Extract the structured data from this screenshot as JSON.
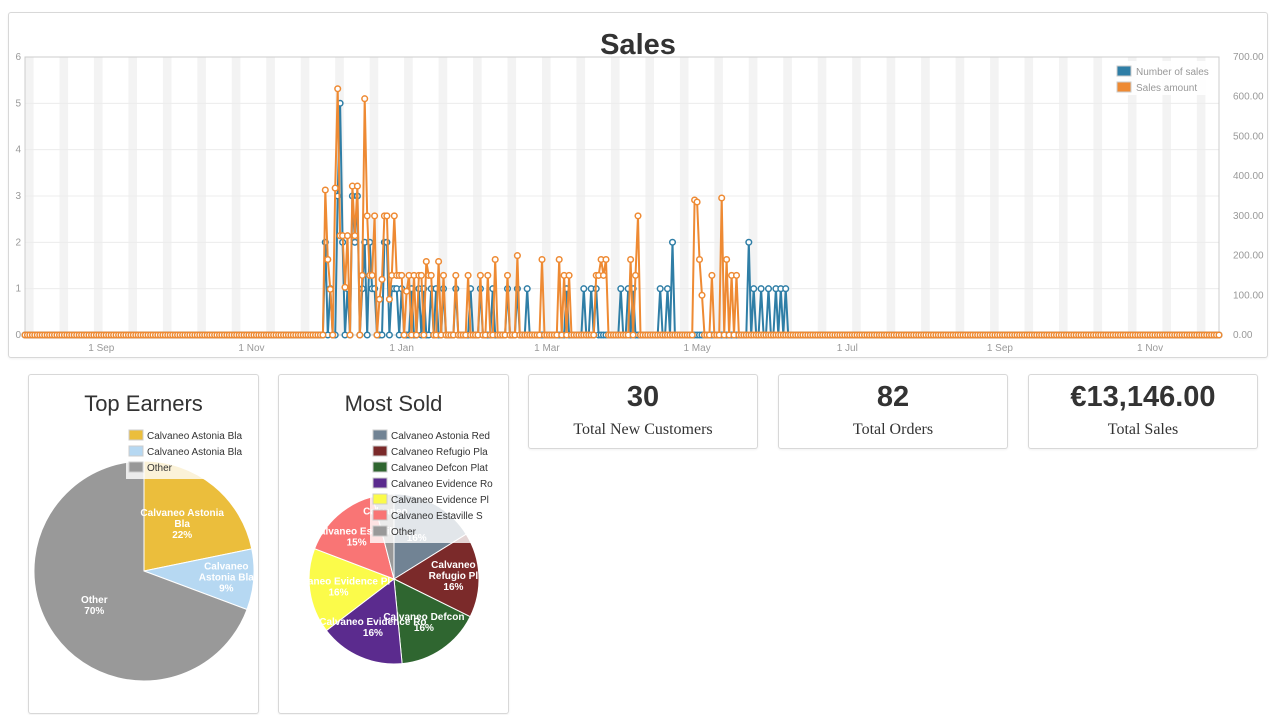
{
  "sales": {
    "title": "Sales",
    "x_tick_labels": [
      "1 Sep",
      "1 Nov",
      "1 Jan",
      "1 Mar",
      "1 May",
      "1 Jul",
      "1 Sep",
      "1 Nov"
    ],
    "y_left_ticks": [
      "0",
      "1",
      "2",
      "3",
      "4",
      "5",
      "6"
    ],
    "y_right_ticks": [
      "0.00",
      "100.00",
      "200.00",
      "300.00",
      "400.00",
      "500.00",
      "600.00",
      "700.00"
    ],
    "legend": [
      {
        "label": "Number of sales",
        "color": "#2f7ea6"
      },
      {
        "label": "Sales amount",
        "color": "#ee8a33"
      }
    ]
  },
  "chart_data": [
    {
      "type": "line",
      "title": "Sales",
      "x_unit": "days since start (~1 Aug)",
      "x_range": [
        0,
        485
      ],
      "ylim_left": [
        0,
        6
      ],
      "ylim_right": [
        0,
        700
      ],
      "series": [
        {
          "name": "Number of sales",
          "axis": "left",
          "color": "#2f7ea6",
          "points": [
            [
              122,
              2
            ],
            [
              124,
              1
            ],
            [
              127,
              3
            ],
            [
              128,
              5
            ],
            [
              129,
              2
            ],
            [
              131,
              1
            ],
            [
              133,
              3
            ],
            [
              134,
              2
            ],
            [
              135,
              3
            ],
            [
              137,
              1
            ],
            [
              138,
              2
            ],
            [
              140,
              2
            ],
            [
              141,
              1
            ],
            [
              142,
              1
            ],
            [
              146,
              2
            ],
            [
              147,
              2
            ],
            [
              149,
              1
            ],
            [
              150,
              1
            ],
            [
              151,
              1
            ],
            [
              153,
              1
            ],
            [
              157,
              1
            ],
            [
              160,
              1
            ],
            [
              162,
              1
            ],
            [
              165,
              1
            ],
            [
              167,
              1
            ],
            [
              170,
              1
            ],
            [
              175,
              1
            ],
            [
              181,
              1
            ],
            [
              185,
              1
            ],
            [
              190,
              1
            ],
            [
              196,
              1
            ],
            [
              200,
              1
            ],
            [
              204,
              1
            ],
            [
              220,
              1
            ],
            [
              227,
              1
            ],
            [
              230,
              1
            ],
            [
              232,
              1
            ],
            [
              242,
              1
            ],
            [
              245,
              1
            ],
            [
              247,
              1
            ],
            [
              258,
              1
            ],
            [
              261,
              1
            ],
            [
              263,
              2
            ],
            [
              294,
              2
            ],
            [
              296,
              1
            ],
            [
              299,
              1
            ],
            [
              302,
              1
            ],
            [
              305,
              1
            ],
            [
              307,
              1
            ],
            [
              309,
              1
            ]
          ]
        },
        {
          "name": "Sales amount",
          "axis": "right",
          "color": "#ee8a33",
          "points": [
            [
              122,
              365
            ],
            [
              123,
              190
            ],
            [
              124,
              115
            ],
            [
              126,
              370
            ],
            [
              127,
              620
            ],
            [
              128,
              250
            ],
            [
              129,
              250
            ],
            [
              130,
              120
            ],
            [
              131,
              250
            ],
            [
              133,
              375
            ],
            [
              134,
              250
            ],
            [
              135,
              375
            ],
            [
              137,
              150
            ],
            [
              138,
              595
            ],
            [
              139,
              300
            ],
            [
              140,
              150
            ],
            [
              141,
              150
            ],
            [
              142,
              300
            ],
            [
              144,
              90
            ],
            [
              145,
              140
            ],
            [
              146,
              300
            ],
            [
              147,
              300
            ],
            [
              148,
              90
            ],
            [
              149,
              150
            ],
            [
              150,
              300
            ],
            [
              151,
              150
            ],
            [
              152,
              150
            ],
            [
              153,
              150
            ],
            [
              155,
              110
            ],
            [
              156,
              150
            ],
            [
              158,
              150
            ],
            [
              160,
              150
            ],
            [
              161,
              150
            ],
            [
              163,
              185
            ],
            [
              164,
              150
            ],
            [
              165,
              150
            ],
            [
              168,
              185
            ],
            [
              170,
              150
            ],
            [
              175,
              150
            ],
            [
              180,
              150
            ],
            [
              185,
              150
            ],
            [
              188,
              150
            ],
            [
              191,
              190
            ],
            [
              196,
              150
            ],
            [
              200,
              200
            ],
            [
              210,
              190
            ],
            [
              217,
              190
            ],
            [
              219,
              150
            ],
            [
              221,
              150
            ],
            [
              232,
              150
            ],
            [
              233,
              150
            ],
            [
              234,
              190
            ],
            [
              235,
              150
            ],
            [
              236,
              190
            ],
            [
              246,
              190
            ],
            [
              248,
              150
            ],
            [
              249,
              300
            ],
            [
              272,
              340
            ],
            [
              273,
              335
            ],
            [
              274,
              190
            ],
            [
              275,
              100
            ],
            [
              279,
              150
            ],
            [
              283,
              345
            ],
            [
              285,
              190
            ],
            [
              287,
              150
            ],
            [
              289,
              150
            ]
          ]
        }
      ]
    },
    {
      "type": "pie",
      "title": "Top Earners",
      "slices": [
        {
          "label": "Calvaneo Astonia Bla",
          "value": 22,
          "color": "#ebbe3c"
        },
        {
          "label": "Calvaneo Astonia Bla",
          "value": 9,
          "color": "#b6d8f2"
        },
        {
          "label": "Other",
          "value": 70,
          "color": "#999999"
        }
      ]
    },
    {
      "type": "pie",
      "title": "Most Sold",
      "slices": [
        {
          "label": "Calvaneo Astonia Red",
          "value": 16,
          "color": "#718394"
        },
        {
          "label": "Calvaneo Refugio Pla",
          "value": 16,
          "color": "#7b2a2a"
        },
        {
          "label": "Calvaneo Defcon Plat",
          "value": 16,
          "color": "#2f6630"
        },
        {
          "label": "Calvaneo Evidence Ro",
          "value": 16,
          "color": "#5b2b8e"
        },
        {
          "label": "Calvaneo Evidence Pl",
          "value": 16,
          "color": "#fbfb4a"
        },
        {
          "label": "Calvaneo Estaville S",
          "value": 15,
          "color": "#f97575"
        },
        {
          "label": "Other",
          "value": 4,
          "color": "#999999"
        }
      ]
    }
  ],
  "top_earners": {
    "title": "Top Earners",
    "slice_labels": [
      {
        "name": "Calvaneo Astonia\nBla",
        "pct": "22%"
      },
      {
        "name": "Calvaneo\nAstonia Bla",
        "pct": "9%"
      },
      {
        "name": "Other",
        "pct": "70%"
      }
    ]
  },
  "most_sold": {
    "title": "Most Sold",
    "slice_labels": [
      {
        "name": "",
        "pct": "16%"
      },
      {
        "name": "Calvaneo\nRefugio Pl",
        "pct": "16%"
      },
      {
        "name": "Calvaneo Defcon",
        "pct": "16%"
      },
      {
        "name": "Calvaneo Evidence Ro",
        "pct": "16%"
      },
      {
        "name": "Calvaneo Evidence Pl",
        "pct": "16%"
      },
      {
        "name": "Calvaneo Estaville",
        "pct": "15%"
      },
      {
        "name": "Calvaneo",
        "pct": ""
      }
    ]
  },
  "stats": {
    "customers": {
      "value": "30",
      "label": "Total New Customers"
    },
    "orders": {
      "value": "82",
      "label": "Total Orders"
    },
    "sales": {
      "value": "€13,146.00",
      "label": "Total Sales"
    }
  }
}
